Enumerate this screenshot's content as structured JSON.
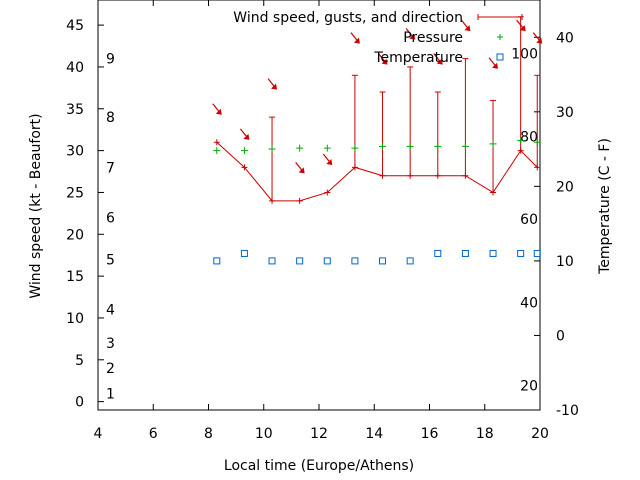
{
  "chart_data": {
    "type": "line",
    "title": "",
    "xlabel": "Local time (Europe/Athens)",
    "ylabel_left": "Wind speed (kt - Beaufort)",
    "ylabel_right": "Temperature (C - F)",
    "xlim": [
      4,
      20
    ],
    "ylim_left": [
      -1,
      48
    ],
    "ylim_right": [
      -10,
      45
    ],
    "x_ticks": [
      4,
      6,
      8,
      10,
      12,
      14,
      16,
      18,
      20
    ],
    "y_left_ticks": [
      0,
      5,
      10,
      15,
      20,
      25,
      30,
      35,
      40,
      45
    ],
    "y_right_ticks": [
      -10,
      0,
      10,
      20,
      30,
      40
    ],
    "beaufort_labels": [
      {
        "label": "1",
        "kt": 1
      },
      {
        "label": "2",
        "kt": 4
      },
      {
        "label": "3",
        "kt": 7
      },
      {
        "label": "4",
        "kt": 11
      },
      {
        "label": "5",
        "kt": 17
      },
      {
        "label": "6",
        "kt": 22
      },
      {
        "label": "7",
        "kt": 28
      },
      {
        "label": "8",
        "kt": 34
      },
      {
        "label": "9",
        "kt": 41
      }
    ],
    "fahrenheit_labels": [
      {
        "label": "20",
        "c": -6.7
      },
      {
        "label": "40",
        "c": 4.4
      },
      {
        "label": "60",
        "c": 15.6
      },
      {
        "label": "80",
        "c": 26.7
      },
      {
        "label": "100",
        "c": 37.8
      }
    ],
    "legend": {
      "position": "top-right",
      "entries": [
        "Wind speed, gusts, and direction",
        "Pressure",
        "Temperature"
      ]
    },
    "series": [
      {
        "name": "Wind speed, gusts, and direction",
        "color": "#cc0000",
        "x": [
          8.3,
          9.3,
          10.3,
          11.3,
          12.3,
          13.3,
          14.3,
          15.3,
          16.3,
          17.3,
          18.3,
          19.3,
          19.9
        ],
        "wind": [
          31,
          28,
          24,
          24,
          25,
          28,
          27,
          27,
          27,
          27,
          25,
          30,
          28
        ],
        "gust": [
          null,
          null,
          34,
          null,
          null,
          39,
          37,
          40,
          37,
          41,
          36,
          46,
          39
        ],
        "direction_arrows": [
          {
            "x": 8.3,
            "y": 35
          },
          {
            "x": 9.3,
            "y": 32
          },
          {
            "x": 10.3,
            "y": 38
          },
          {
            "x": 11.3,
            "y": 28
          },
          {
            "x": 12.3,
            "y": 29
          },
          {
            "x": 13.3,
            "y": 43.5
          },
          {
            "x": 14.3,
            "y": 41
          },
          {
            "x": 15.3,
            "y": 44
          },
          {
            "x": 16.3,
            "y": 41
          },
          {
            "x": 17.3,
            "y": 45
          },
          {
            "x": 18.3,
            "y": 40.5
          },
          {
            "x": 19.3,
            "y": 45
          },
          {
            "x": 19.9,
            "y": 43.5
          }
        ]
      },
      {
        "name": "Pressure",
        "color": "#00aa00",
        "x": [
          8.3,
          9.3,
          10.3,
          11.3,
          12.3,
          13.3,
          14.3,
          15.3,
          16.3,
          17.3,
          18.3,
          19.3,
          19.9
        ],
        "y": [
          30,
          30,
          30.2,
          30.3,
          30.3,
          30.3,
          30.5,
          30.5,
          30.5,
          30.5,
          30.8,
          31.2,
          31
        ]
      },
      {
        "name": "Temperature",
        "color": "#0066cc",
        "axis": "right",
        "x": [
          8.3,
          9.3,
          10.3,
          11.3,
          12.3,
          13.3,
          14.3,
          15.3,
          16.3,
          17.3,
          18.3,
          19.3,
          19.9
        ],
        "y": [
          10,
          11,
          10,
          10,
          10,
          10,
          10,
          10,
          11,
          11,
          11,
          11,
          11
        ]
      }
    ]
  }
}
